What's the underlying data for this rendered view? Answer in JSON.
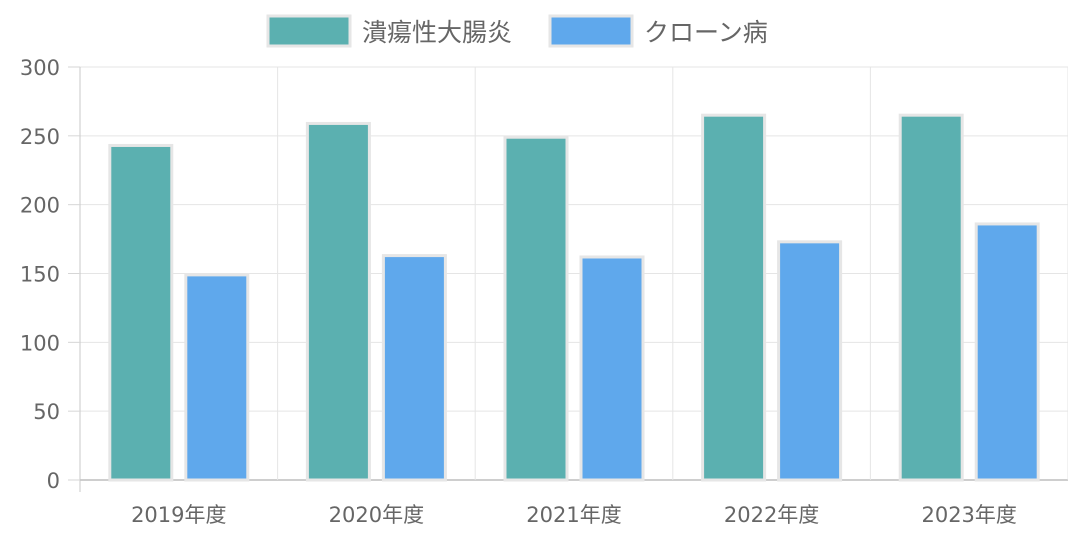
{
  "chart_data": {
    "type": "bar",
    "categories": [
      "2019年度",
      "2020年度",
      "2021年度",
      "2022年度",
      "2023年度"
    ],
    "series": [
      {
        "name": "潰瘍性大腸炎",
        "values": [
          243,
          259,
          249,
          265,
          265
        ],
        "color": "#5bb0b0"
      },
      {
        "name": "クローン病",
        "values": [
          149,
          163,
          162,
          173,
          186
        ],
        "color": "#5fa8ec"
      }
    ],
    "yticks": [
      0,
      50,
      100,
      150,
      200,
      250,
      300
    ],
    "ylim": [
      0,
      300
    ],
    "grid": true,
    "legend_position": "top-center",
    "border_color": "#e6e6e6"
  }
}
